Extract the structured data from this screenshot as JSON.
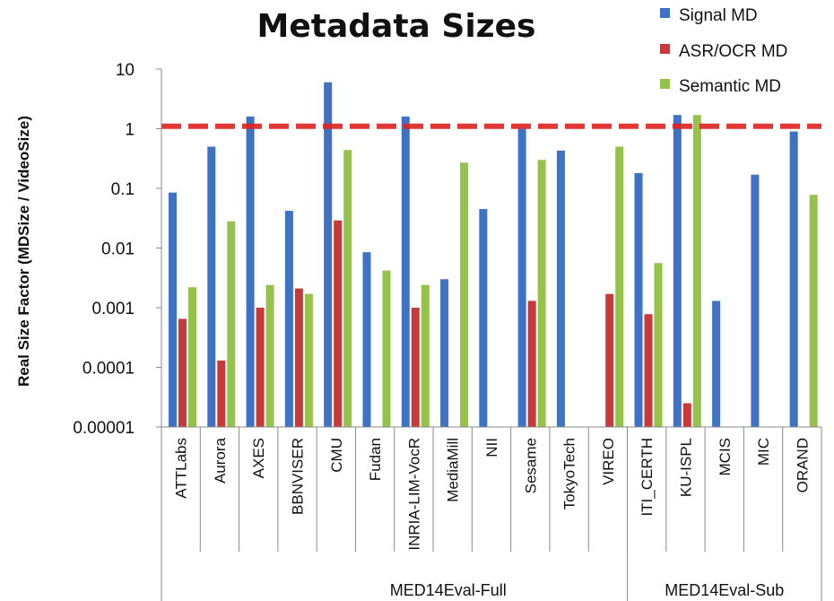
{
  "chart_data": {
    "type": "bar",
    "title": "Metadata Sizes",
    "xlabel": "",
    "ylabel": "Real Size Factor (MDSize / VideoSize)",
    "y_scale": "log",
    "ylim": [
      1e-05,
      10
    ],
    "y_ticks": [
      "10",
      "1",
      "0.1",
      "0.01",
      "0.001",
      "0.0001",
      "0.00001"
    ],
    "grid": false,
    "legend_position": "top-right",
    "reference_line": {
      "value": 1.1,
      "color": "#e0221f",
      "style": "dashed"
    },
    "categories": [
      "ATTLabs",
      "Aurora",
      "AXES",
      "BBNVISER",
      "CMU",
      "Fudan",
      "INRIA-LIM-VocR",
      "MediaMill",
      "NII",
      "Sesame",
      "TokyoTech",
      "VIREO",
      "ITI_CERTH",
      "KU-ISPL",
      "MCIS",
      "MIC",
      "ORAND"
    ],
    "groups": [
      {
        "label": "MED14Eval-Full",
        "count": 12
      },
      {
        "label": "MED14Eval-Sub",
        "count": 5
      }
    ],
    "series": [
      {
        "name": "Signal MD",
        "color": "#3d72c4",
        "values": [
          0.085,
          0.5,
          1.6,
          0.042,
          6.0,
          0.0085,
          1.6,
          0.003,
          0.045,
          1.0,
          0.43,
          null,
          0.18,
          1.7,
          0.0013,
          0.17,
          0.9
        ]
      },
      {
        "name": "ASR/OCR MD",
        "color": "#c8393a",
        "values": [
          0.00065,
          0.00013,
          0.001,
          0.0021,
          0.029,
          null,
          0.001,
          null,
          null,
          0.0013,
          null,
          0.0017,
          0.00078,
          2.5e-05,
          null,
          null,
          null
        ]
      },
      {
        "name": "Semantic MD",
        "color": "#95c249",
        "values": [
          0.0022,
          0.028,
          0.0024,
          0.0017,
          0.44,
          0.0042,
          0.0024,
          0.27,
          null,
          0.3,
          null,
          0.5,
          0.0056,
          1.7,
          null,
          null,
          0.078
        ]
      }
    ]
  }
}
